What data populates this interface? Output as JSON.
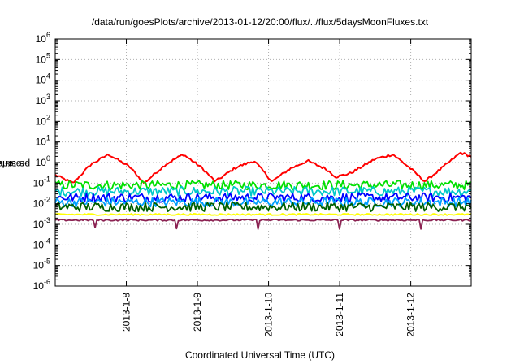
{
  "chart_data": {
    "type": "line",
    "title": "/data/run/goesPlots/archive/2013-01-12/20:00/flux/../flux/5daysMoonFluxes.txt",
    "xlabel": "Coordinated Universal Time (UTC)",
    "ylabel": "protons/cm2-s-sr-MeV",
    "ylabel_parts": {
      "base": "protons/cm",
      "sup": "2",
      "rest": "-s-sr-MeV"
    },
    "x_axis": {
      "type": "time",
      "range_days": [
        0,
        5.85
      ],
      "ticks": [
        {
          "day": 1.0,
          "label": "2013-1-8"
        },
        {
          "day": 2.0,
          "label": "2013-1-9"
        },
        {
          "day": 3.0,
          "label": "2013-1-10"
        },
        {
          "day": 4.0,
          "label": "2013-1-11"
        },
        {
          "day": 5.0,
          "label": "2013-1-12"
        }
      ]
    },
    "y_axis": {
      "scale": "log",
      "ylim": [
        1e-06,
        1000000.0
      ],
      "ticks": [
        {
          "exp": -6,
          "label": "10",
          "sup": "-6"
        },
        {
          "exp": -5,
          "label": "10",
          "sup": "-5"
        },
        {
          "exp": -4,
          "label": "10",
          "sup": "-4"
        },
        {
          "exp": -3,
          "label": "10",
          "sup": "-3"
        },
        {
          "exp": -2,
          "label": "10",
          "sup": "-2"
        },
        {
          "exp": -1,
          "label": "10",
          "sup": "-1"
        },
        {
          "exp": 0,
          "label": "10",
          "sup": "0"
        },
        {
          "exp": 1,
          "label": "10",
          "sup": "1"
        },
        {
          "exp": 2,
          "label": "10",
          "sup": "2"
        },
        {
          "exp": 3,
          "label": "10",
          "sup": "3"
        },
        {
          "exp": 4,
          "label": "10",
          "sup": "4"
        },
        {
          "exp": 5,
          "label": "10",
          "sup": "5"
        },
        {
          "exp": 6,
          "label": "10",
          "sup": "6"
        }
      ]
    },
    "grid": true,
    "legend": "none",
    "series": [
      {
        "color": "#ff0000",
        "values": [
          [
            0,
            0.25
          ],
          [
            0.25,
            0.1
          ],
          [
            0.5,
            0.8
          ],
          [
            0.75,
            2.5
          ],
          [
            1.05,
            0.6
          ],
          [
            1.25,
            0.1
          ],
          [
            1.55,
            0.8
          ],
          [
            1.8,
            2.5
          ],
          [
            2.05,
            0.6
          ],
          [
            2.25,
            0.12
          ],
          [
            2.55,
            0.6
          ],
          [
            2.8,
            1.2
          ],
          [
            2.95,
            0.3
          ],
          [
            3.05,
            0.12
          ],
          [
            3.3,
            0.5
          ],
          [
            3.55,
            1.2
          ],
          [
            3.8,
            0.5
          ],
          [
            3.95,
            0.2
          ],
          [
            4.15,
            0.3
          ],
          [
            4.5,
            1.5
          ],
          [
            4.75,
            2.5
          ],
          [
            5.0,
            0.5
          ],
          [
            5.2,
            0.12
          ],
          [
            5.5,
            0.8
          ],
          [
            5.7,
            3
          ],
          [
            5.85,
            2
          ]
        ]
      },
      {
        "color": "#00e000",
        "values": [
          [
            0,
            0.08
          ],
          [
            5.85,
            0.08
          ]
        ]
      },
      {
        "color": "#00c8c8",
        "values": [
          [
            0,
            0.04
          ],
          [
            5.85,
            0.04
          ]
        ]
      },
      {
        "color": "#0000ff",
        "values": [
          [
            0,
            0.02
          ],
          [
            5.85,
            0.02
          ]
        ]
      },
      {
        "color": "#00a0ff",
        "values": [
          [
            0,
            0.012
          ],
          [
            5.85,
            0.012
          ]
        ]
      },
      {
        "color": "#006000",
        "values": [
          [
            0,
            0.007
          ],
          [
            5.85,
            0.007
          ]
        ]
      },
      {
        "color": "#ffff00",
        "values": [
          [
            0,
            0.003
          ],
          [
            5.85,
            0.003
          ]
        ]
      },
      {
        "color": "#8b2252",
        "values": [
          [
            0,
            0.0016
          ],
          [
            5.85,
            0.0016
          ]
        ]
      }
    ]
  }
}
